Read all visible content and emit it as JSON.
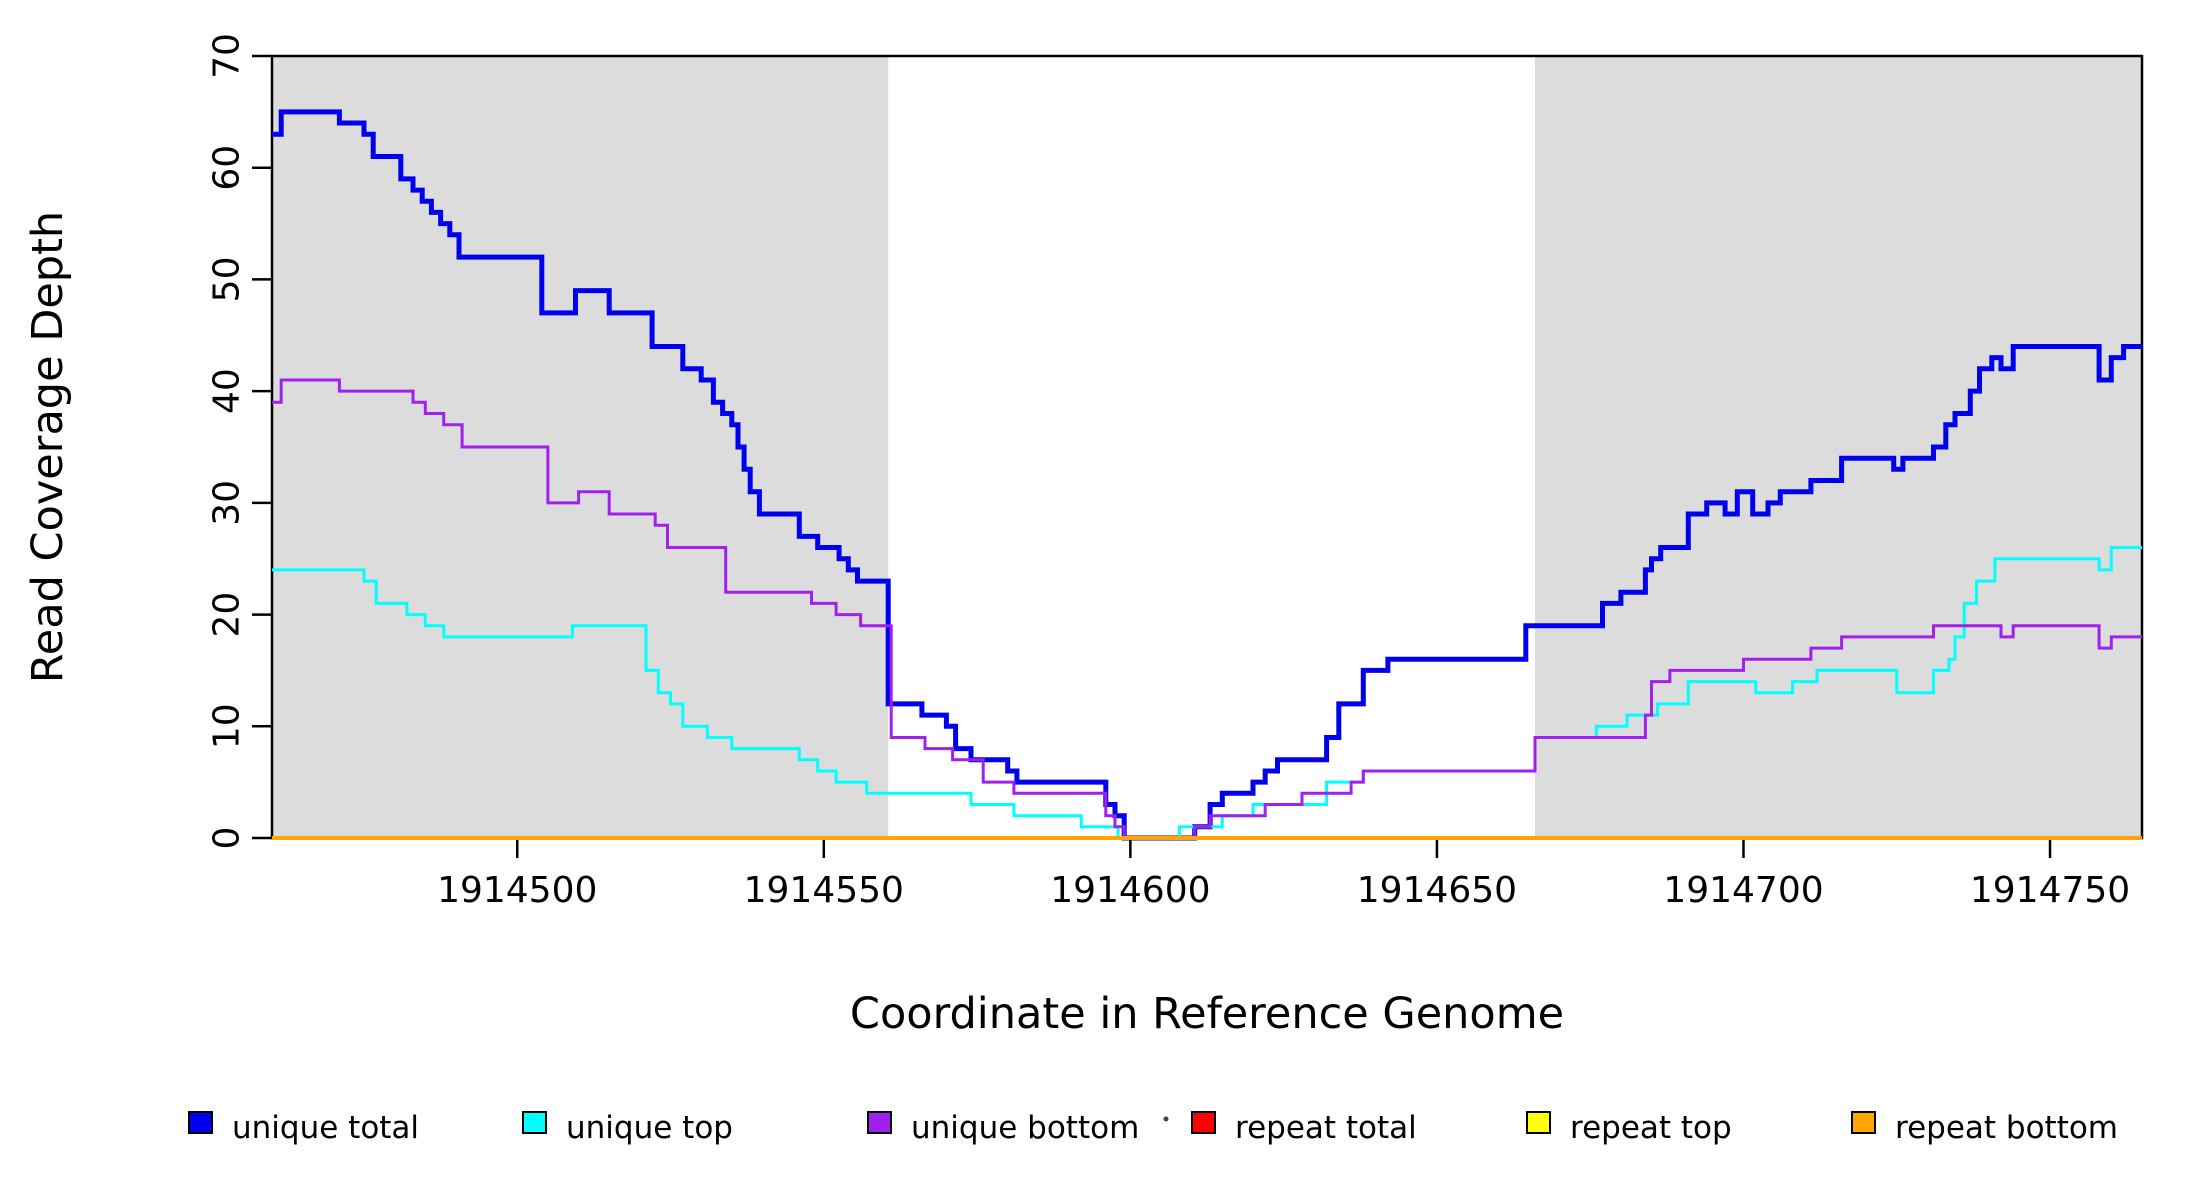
{
  "chart_data": {
    "type": "line",
    "subtype": "step-after",
    "title": "",
    "xlabel": "Coordinate in Reference Genome",
    "ylabel": "Read Coverage Depth",
    "xlim": [
      1914460,
      1914765
    ],
    "ylim": [
      0,
      70
    ],
    "x_ticks": [
      1914500,
      1914550,
      1914600,
      1914650,
      1914700,
      1914750
    ],
    "y_ticks": [
      0,
      10,
      20,
      30,
      40,
      50,
      60,
      70
    ],
    "grid": false,
    "legend_position": "bottom",
    "background_color": "#ffffff",
    "shaded_regions": [
      {
        "x0": 1914460,
        "x1": 1914560.5,
        "color": "#dcdcdc"
      },
      {
        "x0": 1914666,
        "x1": 1914765,
        "color": "#dcdcdc"
      }
    ],
    "series": [
      {
        "name": "unique total",
        "color": "#0000ee",
        "width": 5,
        "points": [
          [
            1914460,
            63
          ],
          [
            1914461.5,
            65
          ],
          [
            1914471,
            64
          ],
          [
            1914475,
            63
          ],
          [
            1914476.5,
            61
          ],
          [
            1914481,
            59
          ],
          [
            1914483,
            58
          ],
          [
            1914484.5,
            57
          ],
          [
            1914486,
            56
          ],
          [
            1914487.5,
            55
          ],
          [
            1914489,
            54
          ],
          [
            1914490.5,
            52
          ],
          [
            1914504,
            47
          ],
          [
            1914509.5,
            49
          ],
          [
            1914515,
            47
          ],
          [
            1914522,
            44
          ],
          [
            1914527,
            42
          ],
          [
            1914530,
            41
          ],
          [
            1914532,
            39
          ],
          [
            1914533.5,
            38
          ],
          [
            1914535,
            37
          ],
          [
            1914536,
            35
          ],
          [
            1914537,
            33
          ],
          [
            1914538,
            31
          ],
          [
            1914539.5,
            29
          ],
          [
            1914546,
            27
          ],
          [
            1914549,
            26
          ],
          [
            1914552.5,
            25
          ],
          [
            1914554,
            24
          ],
          [
            1914555.5,
            23
          ],
          [
            1914560.5,
            12
          ],
          [
            1914566,
            11
          ],
          [
            1914570,
            10
          ],
          [
            1914571.5,
            8
          ],
          [
            1914574,
            7
          ],
          [
            1914580,
            6
          ],
          [
            1914581.5,
            5
          ],
          [
            1914596,
            3
          ],
          [
            1914597.5,
            2
          ],
          [
            1914599,
            0
          ],
          [
            1914610.5,
            1
          ],
          [
            1914613,
            3
          ],
          [
            1914615,
            4
          ],
          [
            1914620,
            5
          ],
          [
            1914622,
            6
          ],
          [
            1914624,
            7
          ],
          [
            1914632,
            9
          ],
          [
            1914634,
            12
          ],
          [
            1914638,
            15
          ],
          [
            1914642,
            16
          ],
          [
            1914664.5,
            19
          ],
          [
            1914677,
            21
          ],
          [
            1914680,
            22
          ],
          [
            1914684,
            24
          ],
          [
            1914685,
            25
          ],
          [
            1914686.5,
            26
          ],
          [
            1914691,
            29
          ],
          [
            1914694,
            30
          ],
          [
            1914697,
            29
          ],
          [
            1914699,
            31
          ],
          [
            1914701.5,
            29
          ],
          [
            1914704,
            30
          ],
          [
            1914706,
            31
          ],
          [
            1914711,
            32
          ],
          [
            1914716,
            34
          ],
          [
            1914724.5,
            33
          ],
          [
            1914726,
            34
          ],
          [
            1914731,
            35
          ],
          [
            1914733,
            37
          ],
          [
            1914734.5,
            38
          ],
          [
            1914737,
            40
          ],
          [
            1914738.5,
            42
          ],
          [
            1914740.5,
            43
          ],
          [
            1914742,
            42
          ],
          [
            1914744,
            44
          ],
          [
            1914758,
            41
          ],
          [
            1914760,
            43
          ],
          [
            1914762,
            44
          ]
        ]
      },
      {
        "name": "unique top",
        "color": "#00ffff",
        "width": 3,
        "points": [
          [
            1914460,
            24
          ],
          [
            1914475,
            23
          ],
          [
            1914477,
            21
          ],
          [
            1914482,
            20
          ],
          [
            1914485,
            19
          ],
          [
            1914488,
            18
          ],
          [
            1914509,
            19
          ],
          [
            1914521,
            15
          ],
          [
            1914523,
            13
          ],
          [
            1914525,
            12
          ],
          [
            1914527,
            10
          ],
          [
            1914531,
            9
          ],
          [
            1914535,
            8
          ],
          [
            1914546,
            7
          ],
          [
            1914549,
            6
          ],
          [
            1914552,
            5
          ],
          [
            1914557,
            4
          ],
          [
            1914574,
            3
          ],
          [
            1914581,
            2
          ],
          [
            1914592,
            1
          ],
          [
            1914598,
            0
          ],
          [
            1914608,
            1
          ],
          [
            1914615,
            2
          ],
          [
            1914620,
            3
          ],
          [
            1914632,
            5
          ],
          [
            1914638,
            6
          ],
          [
            1914666,
            9
          ],
          [
            1914676,
            10
          ],
          [
            1914681,
            11
          ],
          [
            1914686,
            12
          ],
          [
            1914691,
            14
          ],
          [
            1914702,
            13
          ],
          [
            1914708,
            14
          ],
          [
            1914712,
            15
          ],
          [
            1914725,
            13
          ],
          [
            1914731,
            15
          ],
          [
            1914733.5,
            16
          ],
          [
            1914734.5,
            18
          ],
          [
            1914736,
            21
          ],
          [
            1914738,
            23
          ],
          [
            1914741,
            25
          ],
          [
            1914758,
            24
          ],
          [
            1914760,
            26
          ]
        ]
      },
      {
        "name": "unique bottom",
        "color": "#a020f0",
        "width": 3,
        "points": [
          [
            1914460,
            39
          ],
          [
            1914461.5,
            41
          ],
          [
            1914471,
            40
          ],
          [
            1914483,
            39
          ],
          [
            1914485,
            38
          ],
          [
            1914488,
            37
          ],
          [
            1914491,
            35
          ],
          [
            1914505,
            30
          ],
          [
            1914510,
            31
          ],
          [
            1914515,
            29
          ],
          [
            1914522.5,
            28
          ],
          [
            1914524.5,
            26
          ],
          [
            1914534,
            22
          ],
          [
            1914548,
            21
          ],
          [
            1914552,
            20
          ],
          [
            1914556,
            19
          ],
          [
            1914561,
            9
          ],
          [
            1914566.5,
            8
          ],
          [
            1914571,
            7
          ],
          [
            1914576,
            5
          ],
          [
            1914581,
            4
          ],
          [
            1914596,
            2
          ],
          [
            1914597.5,
            1
          ],
          [
            1914599,
            0
          ],
          [
            1914610.5,
            1
          ],
          [
            1914613,
            2
          ],
          [
            1914622,
            3
          ],
          [
            1914628,
            4
          ],
          [
            1914636,
            5
          ],
          [
            1914638,
            6
          ],
          [
            1914666,
            9
          ],
          [
            1914684,
            11
          ],
          [
            1914685,
            14
          ],
          [
            1914688,
            15
          ],
          [
            1914700,
            16
          ],
          [
            1914711,
            17
          ],
          [
            1914716,
            18
          ],
          [
            1914731,
            19
          ],
          [
            1914742,
            18
          ],
          [
            1914744,
            19
          ],
          [
            1914758,
            17
          ],
          [
            1914760,
            18
          ]
        ]
      },
      {
        "name": "repeat total",
        "color": "#ff0000",
        "width": 3,
        "points": [
          [
            1914460,
            0
          ]
        ]
      },
      {
        "name": "repeat top",
        "color": "#ffff00",
        "width": 3,
        "points": [
          [
            1914460,
            0
          ]
        ]
      },
      {
        "name": "repeat bottom",
        "color": "#ffa500",
        "width": 4,
        "points": [
          [
            1914460,
            0
          ]
        ]
      }
    ]
  },
  "legend": {
    "items": [
      {
        "label": "unique total",
        "color": "#0000ee"
      },
      {
        "label": "unique top",
        "color": "#00ffff"
      },
      {
        "label": "unique bottom",
        "color": "#a020f0"
      },
      {
        "label": "repeat total",
        "color": "#ff0000"
      },
      {
        "label": "repeat top",
        "color": "#ffff00"
      },
      {
        "label": "repeat bottom",
        "color": "#ffa500"
      }
    ],
    "stray_mark": {
      "present": true,
      "description": "tiny dot left of repeat-total swatch"
    }
  }
}
